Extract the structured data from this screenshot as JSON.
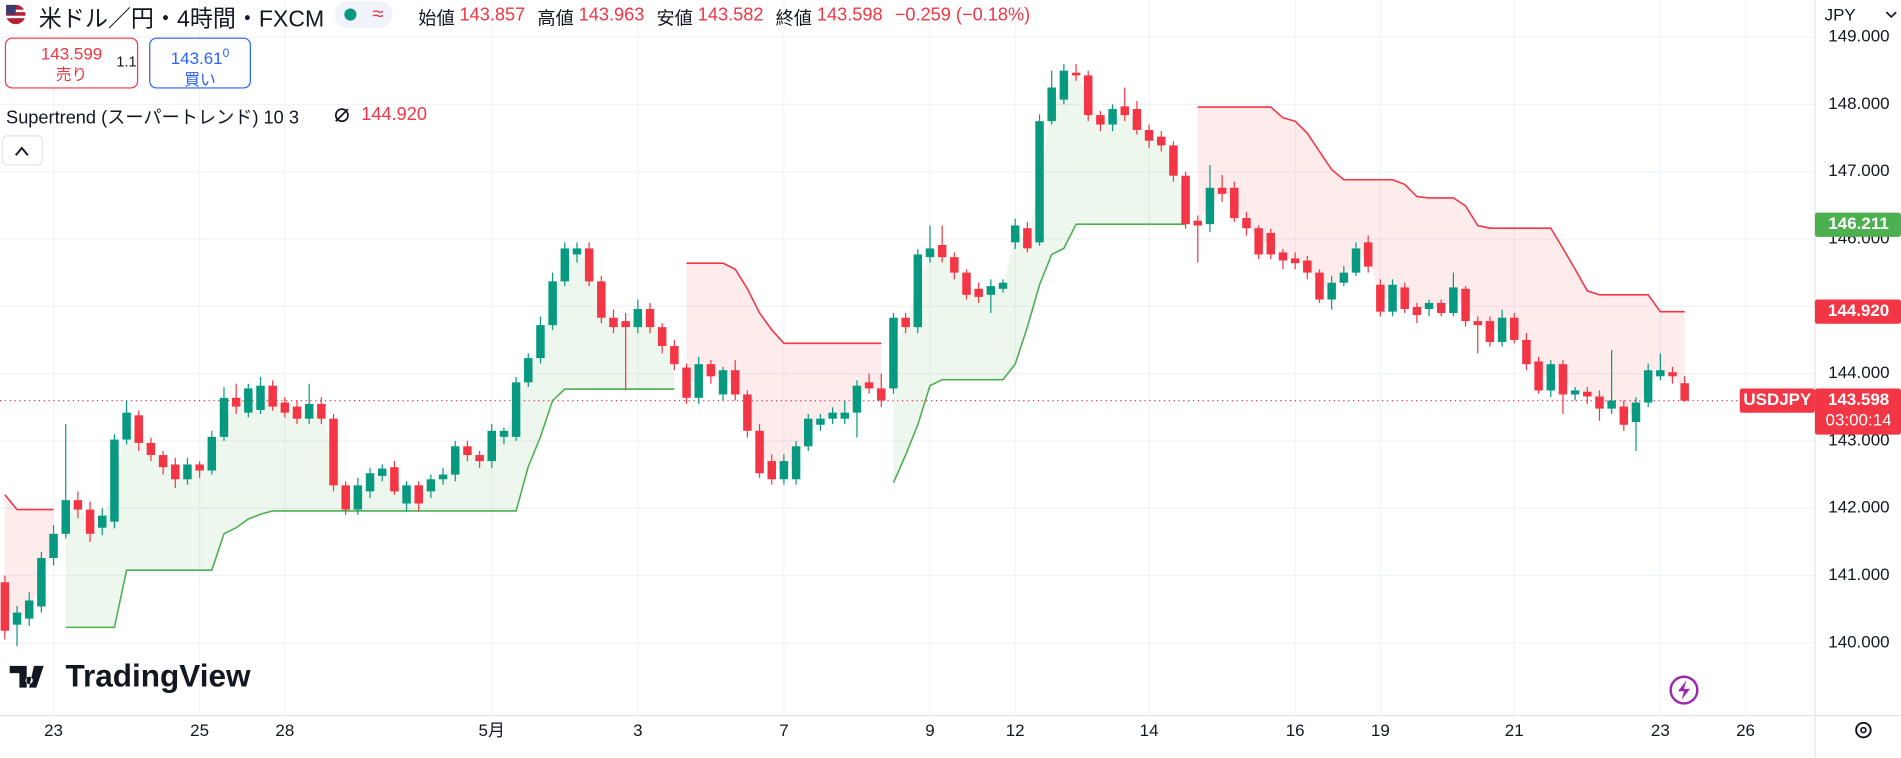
{
  "header": {
    "title": "米ドル／円・4時間・FXCM",
    "badge": "≈",
    "ohlc_legend": [
      {
        "label": "始値",
        "value": 143.857
      },
      {
        "label": "高値",
        "value": 143.963
      },
      {
        "label": "安値",
        "value": 143.582
      },
      {
        "label": "終値",
        "value": 143.598
      }
    ],
    "change": "−0.259 (−0.18%)",
    "currency": "JPY"
  },
  "trade": {
    "sell_price": "143.599",
    "sell_label": "売り",
    "spread": 1.1,
    "buy_price": "143.61",
    "buy_pipette": "0",
    "buy_label": "買い"
  },
  "indicator": {
    "name": "Supertrend (スーパートレンド) 10 3",
    "value": "144.920"
  },
  "branding": "TradingView",
  "chart_data": {
    "type": "candlestick",
    "xlim": [
      -0.4,
      148.7
    ],
    "ylim": [
      138.92,
      149.55
    ],
    "xticks": [
      {
        "value": 4,
        "label": "23"
      },
      {
        "value": 16,
        "label": "25"
      },
      {
        "value": 23,
        "label": "28"
      },
      {
        "value": 40,
        "label": "5月"
      },
      {
        "value": 52,
        "label": "3"
      },
      {
        "value": 64,
        "label": "7"
      },
      {
        "value": 76,
        "label": "9"
      },
      {
        "value": 83,
        "label": "12"
      },
      {
        "value": 94,
        "label": "14"
      },
      {
        "value": 106,
        "label": "16"
      },
      {
        "value": 113,
        "label": "19"
      },
      {
        "value": 124,
        "label": "21"
      },
      {
        "value": 136,
        "label": "23"
      },
      {
        "value": 143,
        "label": "26"
      }
    ],
    "yticks": [
      {
        "value": 140,
        "label": "140.000"
      },
      {
        "value": 141,
        "label": "141.000"
      },
      {
        "value": 142,
        "label": "142.000"
      },
      {
        "value": 143,
        "label": "143.000"
      },
      {
        "value": 144,
        "label": "144.000"
      },
      {
        "value": 145,
        "label": "145.000"
      },
      {
        "value": 146,
        "label": "146.000"
      },
      {
        "value": 147,
        "label": "147.000"
      },
      {
        "value": 148,
        "label": "148.000"
      },
      {
        "value": 149,
        "label": "149.000"
      }
    ],
    "grid": true,
    "up_color": "#089981",
    "down_color": "#f23645",
    "ohlc": [
      [
        140.9,
        141.0,
        140.05,
        140.18
      ],
      [
        140.27,
        140.55,
        139.95,
        140.45
      ],
      [
        140.36,
        140.75,
        140.25,
        140.63
      ],
      [
        140.54,
        141.35,
        140.45,
        141.26
      ],
      [
        141.26,
        141.75,
        141.15,
        141.62
      ],
      [
        141.62,
        143.25,
        141.55,
        142.12
      ],
      [
        142.12,
        142.25,
        141.85,
        141.98
      ],
      [
        141.98,
        142.1,
        141.5,
        141.62
      ],
      [
        141.71,
        142.0,
        141.6,
        141.89
      ],
      [
        141.8,
        143.1,
        141.7,
        143.02
      ],
      [
        143.02,
        143.6,
        142.95,
        143.42
      ],
      [
        143.38,
        143.45,
        142.85,
        142.97
      ],
      [
        142.97,
        143.05,
        142.7,
        142.79
      ],
      [
        142.79,
        142.85,
        142.5,
        142.61
      ],
      [
        142.65,
        142.75,
        142.3,
        142.43
      ],
      [
        142.43,
        142.75,
        142.35,
        142.65
      ],
      [
        142.65,
        142.7,
        142.45,
        142.56
      ],
      [
        142.56,
        143.15,
        142.5,
        143.06
      ],
      [
        143.06,
        143.8,
        143.0,
        143.64
      ],
      [
        143.64,
        143.85,
        143.4,
        143.51
      ],
      [
        143.42,
        143.85,
        143.35,
        143.78
      ],
      [
        143.46,
        143.95,
        143.4,
        143.82
      ],
      [
        143.82,
        143.9,
        143.45,
        143.51
      ],
      [
        143.57,
        143.65,
        143.35,
        143.42
      ],
      [
        143.51,
        143.6,
        143.25,
        143.33
      ],
      [
        143.33,
        143.85,
        143.25,
        143.55
      ],
      [
        143.55,
        143.65,
        143.25,
        143.33
      ],
      [
        143.33,
        143.4,
        142.25,
        142.34
      ],
      [
        142.34,
        142.4,
        141.9,
        141.98
      ],
      [
        141.98,
        142.45,
        141.9,
        142.34
      ],
      [
        142.25,
        142.6,
        142.15,
        142.52
      ],
      [
        142.48,
        142.65,
        142.4,
        142.59
      ],
      [
        142.61,
        142.7,
        142.2,
        142.25
      ],
      [
        142.07,
        142.4,
        141.95,
        142.34
      ],
      [
        142.34,
        142.4,
        141.95,
        142.07
      ],
      [
        142.25,
        142.5,
        142.15,
        142.43
      ],
      [
        142.43,
        142.6,
        142.35,
        142.5
      ],
      [
        142.5,
        143.0,
        142.4,
        142.92
      ],
      [
        142.92,
        143.0,
        142.7,
        142.79
      ],
      [
        142.79,
        142.85,
        142.6,
        142.7
      ],
      [
        142.7,
        143.25,
        142.6,
        143.15
      ],
      [
        143.06,
        143.2,
        142.95,
        143.15
      ],
      [
        143.06,
        143.95,
        143.0,
        143.87
      ],
      [
        143.87,
        144.3,
        143.8,
        144.23
      ],
      [
        144.23,
        144.85,
        144.15,
        144.72
      ],
      [
        144.72,
        145.5,
        144.65,
        145.37
      ],
      [
        145.37,
        145.95,
        145.3,
        145.86
      ],
      [
        145.77,
        145.95,
        145.65,
        145.86
      ],
      [
        145.86,
        145.95,
        145.3,
        145.37
      ],
      [
        145.37,
        145.45,
        144.75,
        144.83
      ],
      [
        144.83,
        144.95,
        144.6,
        144.69
      ],
      [
        144.78,
        144.9,
        143.75,
        144.69
      ],
      [
        144.69,
        145.1,
        144.6,
        144.96
      ],
      [
        144.96,
        145.05,
        144.6,
        144.69
      ],
      [
        144.69,
        144.75,
        144.3,
        144.41
      ],
      [
        144.41,
        144.5,
        144.05,
        144.14
      ],
      [
        144.09,
        144.15,
        143.55,
        143.64
      ],
      [
        143.64,
        144.25,
        143.55,
        144.14
      ],
      [
        144.14,
        144.2,
        143.85,
        143.96
      ],
      [
        143.69,
        144.1,
        143.6,
        144.05
      ],
      [
        144.05,
        144.2,
        143.6,
        143.69
      ],
      [
        143.69,
        143.75,
        143.05,
        143.15
      ],
      [
        143.15,
        143.25,
        142.45,
        142.52
      ],
      [
        142.7,
        142.8,
        142.35,
        142.43
      ],
      [
        142.43,
        142.8,
        142.35,
        142.7
      ],
      [
        142.43,
        143.0,
        142.35,
        142.92
      ],
      [
        142.92,
        143.4,
        142.85,
        143.33
      ],
      [
        143.24,
        143.4,
        143.15,
        143.33
      ],
      [
        143.33,
        143.5,
        143.25,
        143.42
      ],
      [
        143.33,
        143.6,
        143.25,
        143.42
      ],
      [
        143.42,
        143.9,
        143.05,
        143.82
      ],
      [
        143.87,
        144.0,
        143.7,
        143.78
      ],
      [
        143.78,
        144.0,
        143.5,
        143.6
      ],
      [
        143.78,
        144.9,
        143.7,
        144.83
      ],
      [
        144.83,
        144.9,
        144.6,
        144.69
      ],
      [
        144.69,
        145.85,
        144.6,
        145.77
      ],
      [
        145.73,
        146.2,
        145.65,
        145.86
      ],
      [
        145.91,
        146.2,
        145.65,
        145.73
      ],
      [
        145.73,
        145.8,
        145.4,
        145.5
      ],
      [
        145.5,
        145.55,
        145.1,
        145.17
      ],
      [
        145.26,
        145.35,
        145.05,
        145.14
      ],
      [
        145.17,
        145.4,
        144.9,
        145.3
      ],
      [
        145.26,
        145.4,
        145.2,
        145.35
      ],
      [
        145.95,
        146.3,
        145.85,
        146.2
      ],
      [
        146.16,
        146.25,
        145.8,
        145.86
      ],
      [
        145.95,
        147.85,
        145.9,
        147.75
      ],
      [
        147.75,
        148.5,
        147.7,
        148.25
      ],
      [
        148.07,
        148.6,
        148.0,
        148.5
      ],
      [
        148.47,
        148.6,
        148.35,
        148.43
      ],
      [
        148.43,
        148.5,
        147.75,
        147.84
      ],
      [
        147.84,
        147.9,
        147.6,
        147.7
      ],
      [
        147.7,
        148.0,
        147.6,
        147.93
      ],
      [
        147.97,
        148.25,
        147.75,
        147.84
      ],
      [
        147.93,
        148.05,
        147.55,
        147.62
      ],
      [
        147.62,
        147.7,
        147.35,
        147.46
      ],
      [
        147.52,
        147.6,
        147.3,
        147.39
      ],
      [
        147.39,
        147.45,
        146.85,
        146.94
      ],
      [
        146.94,
        147.0,
        146.15,
        146.22
      ],
      [
        146.27,
        146.35,
        145.65,
        146.2
      ],
      [
        146.22,
        147.1,
        146.1,
        146.76
      ],
      [
        146.76,
        146.95,
        146.55,
        146.67
      ],
      [
        146.76,
        146.85,
        146.25,
        146.31
      ],
      [
        146.31,
        146.4,
        146.05,
        146.16
      ],
      [
        146.16,
        146.2,
        145.7,
        145.77
      ],
      [
        146.09,
        146.15,
        145.7,
        145.77
      ],
      [
        145.8,
        145.85,
        145.55,
        145.68
      ],
      [
        145.71,
        145.8,
        145.55,
        145.64
      ],
      [
        145.68,
        145.75,
        145.4,
        145.5
      ],
      [
        145.5,
        145.55,
        145.05,
        145.1
      ],
      [
        145.1,
        145.45,
        144.95,
        145.35
      ],
      [
        145.35,
        145.6,
        145.3,
        145.5
      ],
      [
        145.5,
        145.95,
        145.45,
        145.86
      ],
      [
        145.95,
        146.05,
        145.5,
        145.59
      ],
      [
        145.32,
        145.4,
        144.85,
        144.92
      ],
      [
        144.92,
        145.4,
        144.85,
        145.32
      ],
      [
        145.28,
        145.35,
        144.9,
        144.96
      ],
      [
        144.99,
        145.05,
        144.75,
        144.87
      ],
      [
        144.96,
        145.1,
        144.85,
        145.05
      ],
      [
        145.05,
        145.1,
        144.85,
        144.9
      ],
      [
        144.9,
        145.5,
        144.85,
        145.28
      ],
      [
        145.26,
        145.3,
        144.7,
        144.78
      ],
      [
        144.78,
        144.85,
        144.3,
        144.72
      ],
      [
        144.78,
        144.85,
        144.4,
        144.47
      ],
      [
        144.47,
        144.95,
        144.4,
        144.83
      ],
      [
        144.83,
        144.9,
        144.45,
        144.5
      ],
      [
        144.5,
        144.6,
        144.05,
        144.14
      ],
      [
        144.18,
        144.25,
        143.7,
        143.75
      ],
      [
        143.75,
        144.2,
        143.65,
        144.14
      ],
      [
        144.14,
        144.2,
        143.4,
        143.69
      ],
      [
        143.69,
        143.8,
        143.6,
        143.75
      ],
      [
        143.73,
        143.8,
        143.55,
        143.66
      ],
      [
        143.66,
        143.75,
        143.3,
        143.48
      ],
      [
        143.48,
        144.35,
        143.4,
        143.6
      ],
      [
        143.51,
        143.6,
        143.15,
        143.24
      ],
      [
        143.28,
        143.65,
        142.85,
        143.57
      ],
      [
        143.57,
        144.15,
        143.5,
        144.05
      ],
      [
        143.96,
        144.3,
        143.9,
        144.05
      ],
      [
        144.02,
        144.1,
        143.85,
        143.96
      ],
      [
        143.857,
        143.963,
        143.582,
        143.598
      ]
    ],
    "series": [
      {
        "color": "#f23645",
        "fill": "rgba(242,54,69,0.1)",
        "values": [
          142.2,
          141.98,
          141.98,
          141.98,
          141.98,
          null,
          null,
          null,
          null,
          null,
          null,
          null,
          null,
          null,
          null,
          null,
          null,
          null,
          null,
          null,
          null,
          null,
          null,
          null,
          null,
          null,
          null,
          null,
          null,
          null,
          null,
          null,
          null,
          null,
          null,
          null,
          null,
          null,
          null,
          null,
          null,
          null,
          null,
          null,
          null,
          null,
          null,
          null,
          null,
          null,
          null,
          null,
          null,
          null,
          null,
          null,
          145.64,
          145.64,
          145.64,
          145.64,
          145.55,
          145.26,
          144.9,
          144.65,
          144.45,
          144.45,
          144.45,
          144.45,
          144.45,
          144.45,
          144.45,
          144.45,
          144.45,
          null,
          null,
          null,
          null,
          null,
          null,
          null,
          null,
          null,
          null,
          null,
          null,
          null,
          null,
          null,
          null,
          null,
          null,
          null,
          null,
          null,
          null,
          null,
          null,
          null,
          147.96,
          147.96,
          147.96,
          147.96,
          147.96,
          147.96,
          147.96,
          147.8,
          147.75,
          147.57,
          147.3,
          147.03,
          146.88,
          146.88,
          146.88,
          146.88,
          146.88,
          146.81,
          146.63,
          146.61,
          146.61,
          146.61,
          146.49,
          146.2,
          146.16,
          146.16,
          146.16,
          146.16,
          146.16,
          146.16,
          145.86,
          145.55,
          145.23,
          145.17,
          145.17,
          145.17,
          145.17,
          145.17,
          144.92,
          144.92,
          144.92
        ]
      },
      {
        "color": "#4caf50",
        "fill": "rgba(76,175,80,0.1)",
        "values": [
          null,
          null,
          null,
          null,
          null,
          140.23,
          140.23,
          140.23,
          140.23,
          140.23,
          141.08,
          141.08,
          141.08,
          141.08,
          141.08,
          141.08,
          141.08,
          141.08,
          141.62,
          141.71,
          141.84,
          141.91,
          141.96,
          141.96,
          141.96,
          141.96,
          141.96,
          141.96,
          141.96,
          141.96,
          141.96,
          141.96,
          141.96,
          141.96,
          141.96,
          141.96,
          141.96,
          141.96,
          141.96,
          141.96,
          141.96,
          141.96,
          141.96,
          142.62,
          143.06,
          143.6,
          143.77,
          143.77,
          143.77,
          143.77,
          143.77,
          143.77,
          143.77,
          143.77,
          143.77,
          143.77,
          null,
          null,
          null,
          null,
          null,
          null,
          null,
          null,
          null,
          null,
          null,
          null,
          null,
          null,
          null,
          null,
          null,
          142.38,
          142.79,
          143.24,
          143.82,
          143.91,
          143.91,
          143.91,
          143.91,
          143.91,
          143.91,
          144.14,
          144.69,
          145.32,
          145.77,
          145.86,
          146.22,
          146.22,
          146.22,
          146.22,
          146.22,
          146.22,
          146.22,
          146.22,
          146.22,
          146.22,
          null,
          null,
          null,
          null,
          null,
          null,
          null,
          null,
          null,
          null,
          null,
          null,
          null,
          null,
          null,
          null,
          null,
          null,
          null,
          null,
          null,
          null,
          null,
          null,
          null,
          null,
          null,
          null,
          null,
          null,
          null,
          null,
          null,
          null,
          null,
          null,
          null,
          null,
          null,
          null,
          null
        ]
      }
    ],
    "price_labels": [
      {
        "value": 146.211,
        "label": "146.211",
        "color": "#4caf50"
      },
      {
        "value": 144.92,
        "label": "144.920",
        "color": "#f23645"
      }
    ],
    "last_price": {
      "value": 143.598,
      "label": "143.598",
      "countdown": "03:00:14",
      "symbol": "USDJPY",
      "color": "#f23645"
    }
  }
}
